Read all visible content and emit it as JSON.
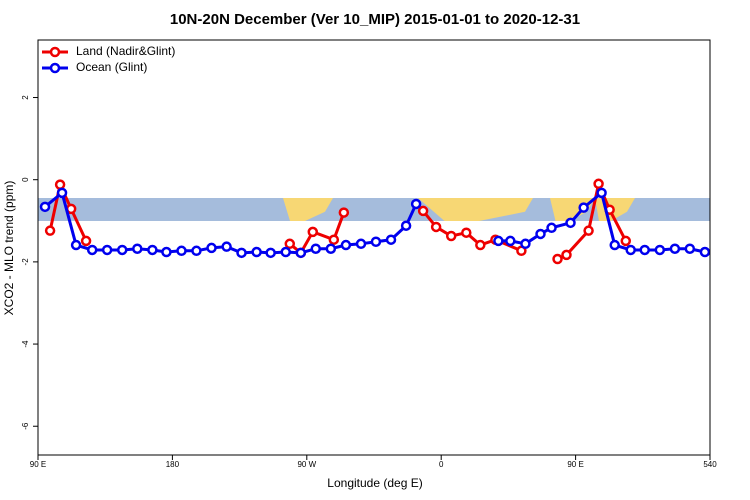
{
  "chart_data": {
    "type": "line",
    "title": "10N-20N December (Ver 10_MIP)   2015-01-01 to 2020-12-31",
    "x_label": "Longitude (deg E)",
    "y_label": "XCO2 - MLO trend (ppm)",
    "xlim": [
      90,
      540
    ],
    "ylim": [
      -6.7,
      3.4
    ],
    "xticks": [
      {
        "value": 90,
        "label": "90 E"
      },
      180,
      {
        "value": 270,
        "label": "90 W"
      },
      {
        "value": 360,
        "label": "0"
      },
      {
        "value": 450,
        "label": "90 E"
      },
      540
    ],
    "yticks": [
      2,
      0,
      -2,
      -4,
      -6
    ],
    "legend": "top-left",
    "series": [
      {
        "name": "Land (Nadir&Glint)",
        "color": "#ee0000",
        "x": [
          98.1,
          104.8,
          112.2,
          122.2,
          null,
          258.6,
          266.0,
          274.0,
          288.1,
          294.8,
          null,
          347.9,
          356.6,
          366.7,
          376.8,
          386.2,
          396.3,
          413.7,
          null,
          437.9,
          443.9,
          458.7,
          465.4,
          472.8,
          483.6
        ],
        "values": [
          -1.24,
          -0.12,
          -0.71,
          -1.49,
          null,
          -1.56,
          -1.78,
          -1.27,
          -1.46,
          -0.8,
          null,
          -0.76,
          -1.15,
          -1.37,
          -1.29,
          -1.59,
          -1.46,
          -1.73,
          null,
          -1.93,
          -1.83,
          -1.24,
          -0.1,
          -0.73,
          -1.49
        ]
      },
      {
        "name": "Ocean (Glint)",
        "color": "#0000ee",
        "x": [
          94.7,
          106.1,
          115.5,
          126.3,
          136.3,
          146.4,
          156.5,
          166.6,
          176.0,
          186.1,
          196.1,
          206.2,
          216.3,
          226.3,
          236.4,
          245.8,
          255.9,
          266.0,
          276.0,
          286.1,
          296.2,
          306.3,
          316.3,
          326.4,
          336.5,
          343.2,
          null,
          398.3,
          406.3,
          416.4,
          426.5,
          433.9,
          446.6,
          455.4,
          467.4,
          476.2,
          486.9,
          496.3,
          506.4,
          516.5,
          526.5,
          536.6
        ],
        "values": [
          -0.66,
          -0.32,
          -1.59,
          -1.71,
          -1.71,
          -1.71,
          -1.68,
          -1.71,
          -1.76,
          -1.73,
          -1.73,
          -1.66,
          -1.63,
          -1.78,
          -1.76,
          -1.78,
          -1.76,
          -1.78,
          -1.68,
          -1.68,
          -1.59,
          -1.56,
          -1.51,
          -1.46,
          -1.12,
          -0.59,
          null,
          -1.49,
          -1.49,
          -1.56,
          -1.32,
          -1.17,
          -1.05,
          -0.68,
          -0.32,
          -1.59,
          -1.71,
          -1.71,
          -1.71,
          -1.68,
          -1.68,
          -1.76
        ]
      }
    ]
  }
}
